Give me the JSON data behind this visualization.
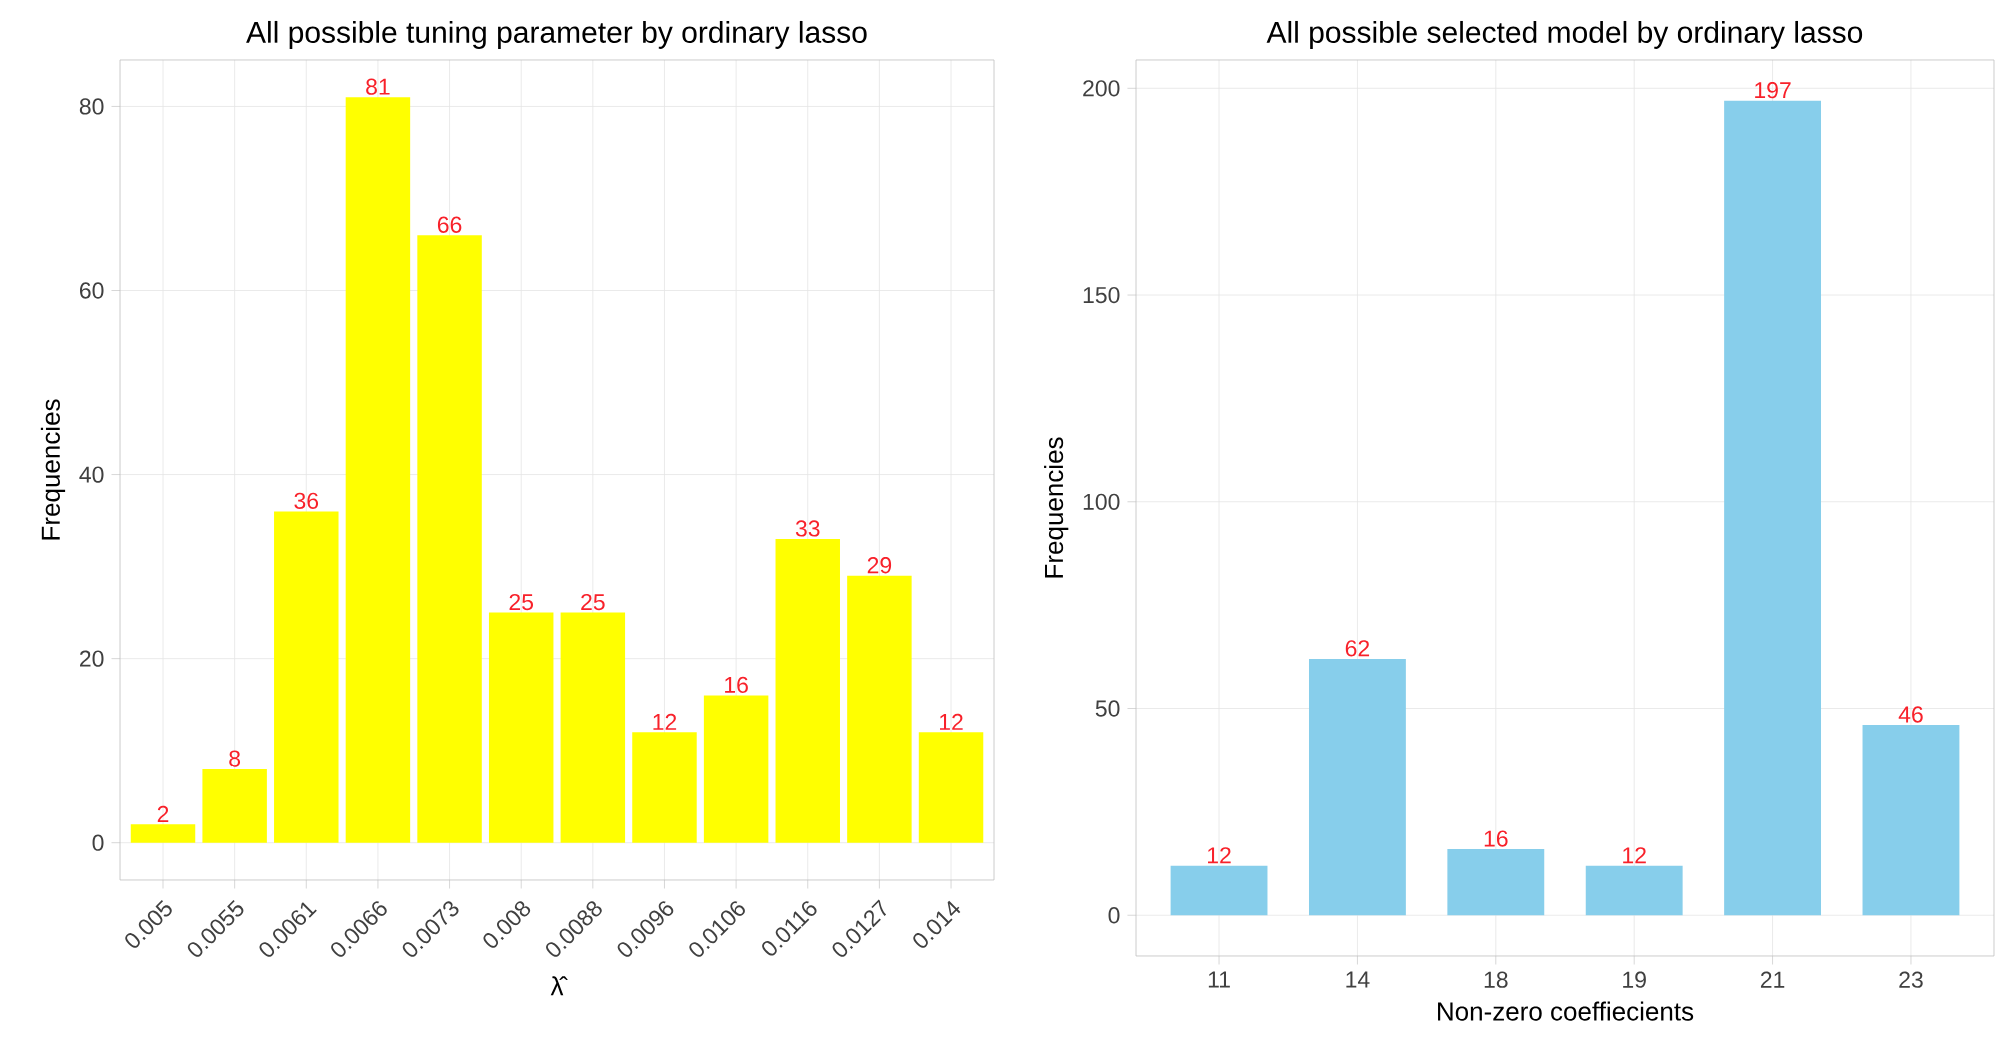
{
  "chart_data": [
    {
      "type": "bar",
      "title": "All possible tuning parameter by ordinary lasso",
      "xlabel": "λ̂",
      "ylabel": "Frequencies",
      "categories": [
        "0.005",
        "0.0055",
        "0.0061",
        "0.0066",
        "0.0073",
        "0.008",
        "0.0088",
        "0.0096",
        "0.0106",
        "0.0116",
        "0.0127",
        "0.014"
      ],
      "values": [
        2,
        8,
        36,
        81,
        66,
        25,
        25,
        12,
        16,
        33,
        29,
        12
      ],
      "color": "#ffff00",
      "ylim": [
        -4.05,
        85.05
      ],
      "yticks": [
        0,
        20,
        40,
        60,
        80
      ],
      "grid": true,
      "data_labels": true
    },
    {
      "type": "bar",
      "title": "All possible selected model by ordinary lasso",
      "xlabel": "Non-zero coeffiecients",
      "ylabel": "Frequencies",
      "categories": [
        "11",
        "14",
        "18",
        "19",
        "21",
        "23"
      ],
      "values": [
        12,
        62,
        16,
        12,
        197,
        46
      ],
      "color": "#87ceeb",
      "ylim": [
        -9.85,
        206.85
      ],
      "yticks": [
        0,
        50,
        100,
        150,
        200
      ],
      "grid": true,
      "data_labels": true
    }
  ]
}
